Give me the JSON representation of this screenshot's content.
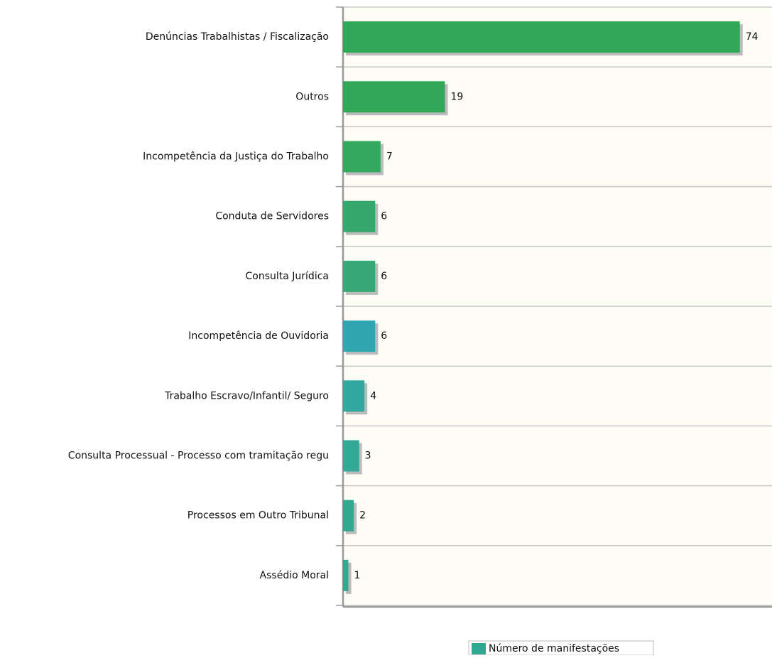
{
  "chart_data": {
    "type": "hbar",
    "categories": [
      "Denúncias Trabalhistas / Fiscalização",
      "Outros",
      "Incompetência da Justiça do Trabalho",
      "Conduta de Servidores",
      "Consulta Jurídica",
      "Incompetência de Ouvidoria",
      "Trabalho Escravo/Infantil/ Seguro",
      "Consulta Processual - Processo com tramitação regu",
      "Processos em Outro Tribunal",
      "Assédio Moral"
    ],
    "series": [
      {
        "name": "Número de manifestações",
        "color": "#2fa88f",
        "values": [
          74,
          19,
          7,
          6,
          6,
          6,
          4,
          3,
          2,
          1
        ],
        "colors": [
          "#31a857",
          "#31a857",
          "#33a960",
          "#35a86e",
          "#35a875",
          "#31a6b0",
          "#33a89e",
          "#33a897",
          "#33a88f",
          "#33a88a"
        ]
      }
    ],
    "xlim": [
      0,
      80
    ]
  }
}
